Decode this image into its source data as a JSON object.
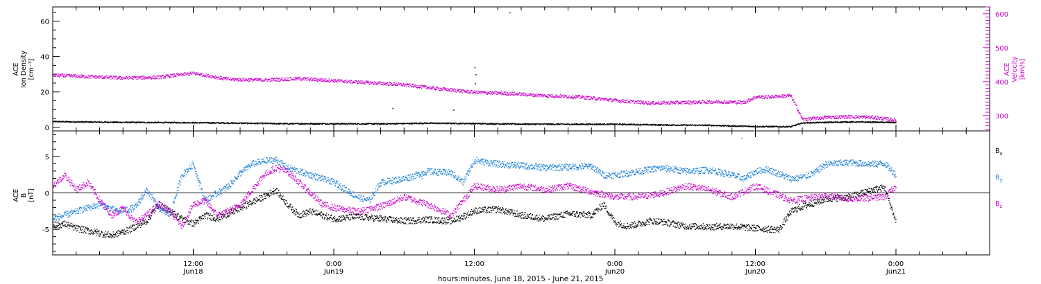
{
  "chart_data": [
    {
      "type": "scatter",
      "panel": "top",
      "xlabel": "hours:minutes, June 18, 2015 - June 21, 2015",
      "x_range_hours": [
        0,
        80
      ],
      "x_ticks": [
        {
          "t": 12,
          "line1": "12:00",
          "line2": "Jun18"
        },
        {
          "t": 24,
          "line1": "0:00",
          "line2": "Jun19"
        },
        {
          "t": 36,
          "line1": "12:00",
          "line2": ""
        },
        {
          "t": 48,
          "line1": "0:00",
          "line2": "Jun20"
        },
        {
          "t": 60,
          "line1": "12:00",
          "line2": "Jun20"
        },
        {
          "t": 72,
          "line1": "0:00",
          "line2": "Jun21"
        }
      ],
      "left_axis": {
        "label": [
          "ACE",
          "Ion Density",
          "[cm⁻³]"
        ],
        "ylim": [
          -2,
          68
        ],
        "ticks": [
          0,
          20,
          40,
          60
        ]
      },
      "right_axis": {
        "label": [
          "ACE",
          "Velocity",
          "[km/s]"
        ],
        "ylim": [
          255,
          620
        ],
        "ticks": [
          300,
          400,
          500,
          600
        ],
        "color": "#cc00cc"
      },
      "series": [
        {
          "name": "Ion Density",
          "axis": "left",
          "color": "#000000",
          "x": [
            0,
            4,
            8,
            12,
            16,
            20,
            24,
            28,
            32,
            36,
            40,
            44,
            48,
            52,
            56,
            60,
            63,
            64,
            68,
            72
          ],
          "y": [
            3.5,
            3.2,
            3.0,
            2.9,
            2.6,
            2.3,
            2.3,
            2.2,
            2.6,
            2.4,
            2.1,
            2.0,
            2.0,
            1.6,
            1.4,
            0.7,
            0.6,
            2.8,
            3.3,
            3.0
          ]
        },
        {
          "name": "Velocity",
          "axis": "right",
          "color": "#cc00cc",
          "x": [
            0,
            3,
            6,
            9,
            12,
            15,
            18,
            21,
            24,
            27,
            30,
            33,
            36,
            39,
            42,
            45,
            48,
            51,
            54,
            57,
            59,
            60,
            61,
            63,
            64,
            66,
            68,
            70,
            72
          ],
          "y": [
            420,
            416,
            412,
            414,
            426,
            408,
            406,
            410,
            404,
            398,
            392,
            380,
            370,
            366,
            360,
            356,
            346,
            338,
            340,
            342,
            340,
            356,
            356,
            360,
            290,
            296,
            298,
            296,
            288
          ]
        }
      ],
      "spikes": [
        {
          "axis": "left",
          "x": 39.0,
          "y": 65
        },
        {
          "axis": "left",
          "x": 29.0,
          "y": 11
        },
        {
          "axis": "left",
          "x": 34.2,
          "y": 10
        },
        {
          "axis": "left",
          "x": 36.0,
          "y": 34
        },
        {
          "axis": "left",
          "x": 36.1,
          "y": 30
        },
        {
          "axis": "left",
          "x": 36.05,
          "y": 25
        }
      ]
    },
    {
      "type": "scatter",
      "panel": "bottom",
      "left_axis": {
        "label": [
          "ACE",
          "B",
          "[nT]"
        ],
        "ylim": [
          -8.5,
          8.5
        ],
        "ticks": [
          -5,
          0,
          5
        ],
        "zero_line": true
      },
      "series": [
        {
          "name": "Bx",
          "label": "B",
          "sub": "x",
          "color": "#000000",
          "x": [
            0,
            1,
            2,
            3.5,
            5,
            6.5,
            8,
            9,
            10,
            11,
            12,
            13,
            14,
            15,
            16,
            17,
            18,
            19,
            20,
            21,
            22,
            23,
            24,
            26,
            28,
            30,
            32,
            34,
            35,
            36,
            38,
            40,
            42,
            44,
            46,
            47,
            48,
            49,
            50,
            51,
            52,
            54,
            56,
            58,
            60,
            61,
            62,
            63,
            64,
            66,
            68,
            70,
            71,
            72
          ],
          "y": [
            -4.5,
            -4.2,
            -4.8,
            -5.3,
            -5.8,
            -5.0,
            -3.8,
            -1.5,
            -2.5,
            -3.5,
            -4.2,
            -3.0,
            -3.5,
            -2.8,
            -2.0,
            -1.2,
            -0.5,
            0.5,
            -1.5,
            -3.0,
            -2.5,
            -3.0,
            -3.5,
            -3.2,
            -3.5,
            -3.8,
            -3.6,
            -3.8,
            -3.2,
            -2.4,
            -2.2,
            -3.0,
            -3.5,
            -2.8,
            -3.0,
            -1.5,
            -4.0,
            -4.5,
            -4.2,
            -3.8,
            -3.9,
            -4.5,
            -4.6,
            -4.5,
            -4.8,
            -4.9,
            -5.0,
            -2.5,
            -1.8,
            -0.8,
            -0.5,
            0.5,
            0.8,
            -4.0
          ]
        },
        {
          "name": "By",
          "label": "B",
          "sub": "y",
          "color": "#1a7fd9",
          "x": [
            0,
            2,
            4,
            5.5,
            7,
            8,
            9,
            10,
            11,
            12,
            13,
            15,
            16,
            17,
            18,
            19,
            20,
            21,
            22,
            24,
            25,
            26,
            27,
            28,
            30,
            32,
            34,
            35,
            36,
            38,
            40,
            42,
            44,
            46,
            47,
            48,
            50,
            52,
            54,
            56,
            58,
            59,
            60,
            61,
            63,
            64,
            65,
            66,
            68,
            70,
            71,
            72
          ],
          "y": [
            -3.5,
            -2.5,
            -1.5,
            -2.5,
            -2.0,
            0.5,
            -2.0,
            -3.0,
            2.5,
            4.0,
            -1.0,
            1.0,
            2.8,
            4.0,
            4.4,
            4.6,
            3.5,
            3.0,
            2.5,
            1.5,
            0.5,
            -0.5,
            -1.0,
            1.5,
            2.0,
            3.0,
            2.8,
            1.5,
            4.5,
            4.0,
            3.8,
            3.5,
            3.6,
            3.7,
            2.5,
            2.5,
            3.0,
            3.5,
            3.0,
            3.2,
            2.5,
            2.0,
            3.0,
            3.3,
            2.0,
            2.2,
            2.8,
            4.0,
            4.2,
            4.0,
            4.1,
            2.5
          ]
        },
        {
          "name": "Bz",
          "label": "B",
          "sub": "z",
          "color": "#cc00cc",
          "x": [
            0,
            1,
            2,
            3,
            4,
            5,
            6,
            7,
            8,
            9,
            10,
            11,
            12,
            13,
            14,
            15,
            16,
            17,
            18,
            19,
            20,
            21,
            22,
            23,
            24,
            26,
            28,
            30,
            32,
            34,
            35,
            36,
            38,
            40,
            42,
            44,
            46,
            48,
            50,
            52,
            54,
            56,
            58,
            60,
            62,
            63,
            64,
            66,
            68,
            70,
            71,
            72
          ],
          "y": [
            1.0,
            2.5,
            0.5,
            1.5,
            -1.0,
            -3.0,
            -2.0,
            -4.0,
            -3.0,
            -1.5,
            -2.5,
            -4.5,
            -1.5,
            -1.0,
            -3.0,
            -2.5,
            -1.5,
            0.5,
            2.5,
            3.5,
            3.0,
            1.5,
            0.0,
            -1.5,
            -2.0,
            -2.5,
            -1.8,
            -0.5,
            -1.5,
            -3.0,
            -1.0,
            1.0,
            0.5,
            1.0,
            0.5,
            1.0,
            0.2,
            -0.5,
            -0.5,
            0.0,
            1.0,
            0.5,
            -0.5,
            1.0,
            -0.3,
            -1.0,
            -0.8,
            -0.3,
            -0.8,
            -0.6,
            -0.5,
            1.0
          ]
        }
      ],
      "spikes": [
        {
          "series": "By",
          "x": 58.8,
          "y": 7.5
        },
        {
          "series": "By",
          "x": 31.5,
          "y": 2.0
        }
      ]
    }
  ]
}
